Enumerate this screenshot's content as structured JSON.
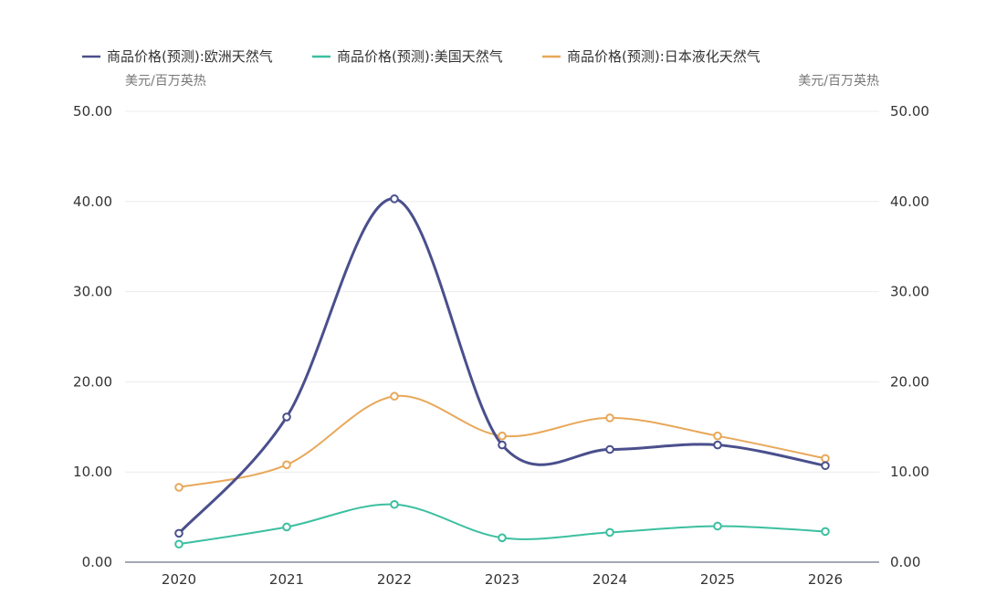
{
  "chart_data": {
    "type": "line",
    "smooth": true,
    "x": [
      "2020",
      "2021",
      "2022",
      "2023",
      "2024",
      "2025",
      "2026"
    ],
    "series": [
      {
        "name": "商品价格(预测):欧洲天然气",
        "color": "#4a4f8c",
        "values": [
          3.2,
          16.1,
          40.3,
          13.0,
          12.5,
          13.0,
          10.7
        ]
      },
      {
        "name": "商品价格(预测):美国天然气",
        "color": "#3bbfa0",
        "values": [
          2.0,
          3.9,
          6.4,
          2.7,
          3.3,
          4.0,
          3.4
        ]
      },
      {
        "name": "商品价格(预测):日本液化天然气",
        "color": "#e8a85a",
        "values": [
          8.3,
          10.8,
          18.4,
          14.0,
          16.0,
          14.0,
          11.5
        ]
      }
    ],
    "y_left": {
      "unit": "美元/百万英热",
      "range": [
        0,
        50
      ],
      "ticks": [
        "0.00",
        "10.00",
        "20.00",
        "30.00",
        "40.00",
        "50.00"
      ]
    },
    "y_right": {
      "unit": "美元/百万英热",
      "range": [
        0,
        50
      ],
      "ticks": [
        "0.00",
        "10.00",
        "20.00",
        "30.00",
        "40.00",
        "50.00"
      ]
    },
    "grid": true,
    "legend_position": "top-left"
  }
}
